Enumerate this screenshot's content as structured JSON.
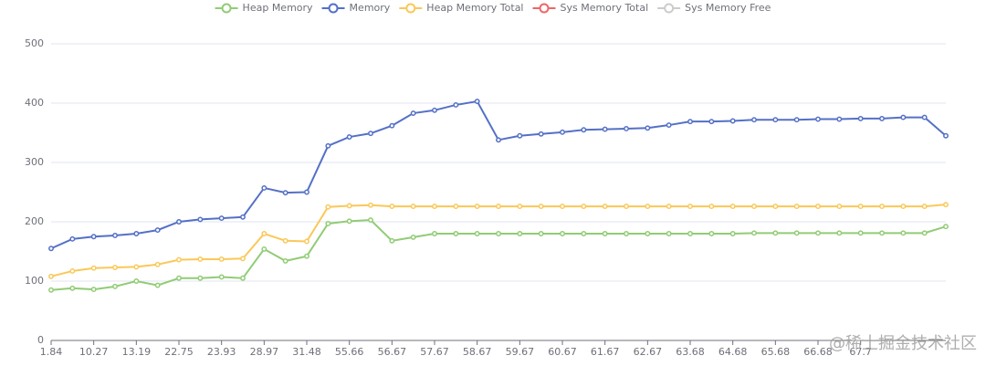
{
  "chart_data": {
    "type": "line",
    "categories": [
      "1.84",
      null,
      "10.27",
      null,
      "13.19",
      null,
      "22.75",
      null,
      "23.93",
      null,
      "28.97",
      null,
      "31.48",
      null,
      "55.66",
      null,
      "56.67",
      null,
      "57.67",
      null,
      "58.67",
      null,
      "59.67",
      null,
      "60.67",
      null,
      "61.67",
      null,
      "62.67",
      null,
      "63.68",
      null,
      "64.68",
      null,
      "65.68",
      null,
      "66.68",
      null,
      "67.7",
      null,
      null,
      null,
      null
    ],
    "series": [
      {
        "name": "Heap Memory",
        "color": "#91cc75",
        "values": [
          85,
          88,
          86,
          91,
          100,
          93,
          105,
          105,
          107,
          105,
          154,
          134,
          142,
          197,
          201,
          203,
          168,
          174,
          180,
          180,
          180,
          180,
          180,
          180,
          180,
          180,
          180,
          180,
          180,
          180,
          180,
          180,
          180,
          181,
          181,
          181,
          181,
          181,
          181,
          181,
          181,
          181,
          192
        ]
      },
      {
        "name": "Memory",
        "color": "#5470c6",
        "values": [
          155,
          171,
          175,
          177,
          180,
          186,
          200,
          204,
          206,
          208,
          257,
          249,
          250,
          328,
          343,
          349,
          362,
          383,
          388,
          397,
          403,
          338,
          345,
          348,
          351,
          355,
          356,
          357,
          358,
          363,
          369,
          369,
          370,
          372,
          372,
          372,
          373,
          373,
          374,
          374,
          376,
          376,
          345
        ]
      },
      {
        "name": "Heap Memory Total",
        "color": "#fac858",
        "values": [
          108,
          117,
          122,
          123,
          124,
          128,
          136,
          137,
          137,
          138,
          180,
          168,
          167,
          225,
          227,
          228,
          226,
          226,
          226,
          226,
          226,
          226,
          226,
          226,
          226,
          226,
          226,
          226,
          226,
          226,
          226,
          226,
          226,
          226,
          226,
          226,
          226,
          226,
          226,
          226,
          226,
          226,
          229
        ]
      },
      {
        "name": "Sys Memory Total",
        "color": "#ee6666",
        "values": null
      },
      {
        "name": "Sys Memory Free",
        "color": "#cccccc",
        "values": null,
        "visible": false
      }
    ],
    "ylim": [
      0,
      500
    ],
    "yticks": [
      0,
      100,
      200,
      300,
      400,
      500
    ],
    "grid": true,
    "legend": "top",
    "watermark": "@稀土掘金技术社区"
  }
}
